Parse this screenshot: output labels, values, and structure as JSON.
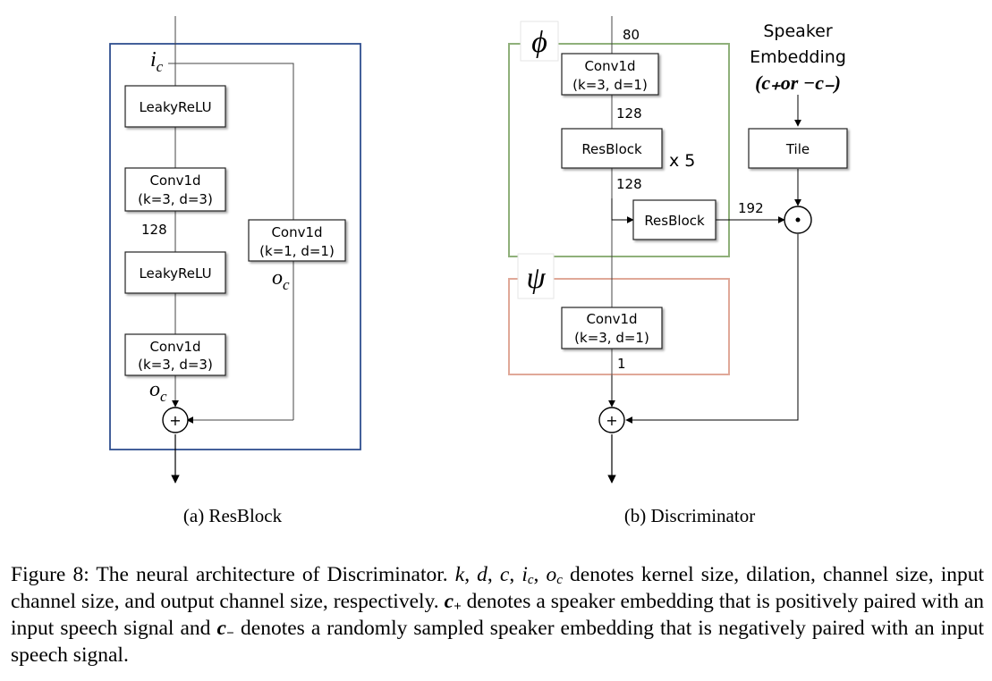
{
  "resblock": {
    "input_label": "i",
    "input_sub": "c",
    "output_label": "o",
    "output_sub": "c",
    "skip_label": "o",
    "skip_sub": "c",
    "leaky1": "LeakyReLU",
    "conv1_line1": "Conv1d",
    "conv1_line2": "(k=3, d=3)",
    "ch_128": "128",
    "leaky2": "LeakyReLU",
    "conv2_line1": "Conv1d",
    "conv2_line2": "(k=3, d=3)",
    "skip_line1": "Conv1d",
    "skip_line2": "(k=1, d=1)",
    "plus": "+",
    "subcaption": "(a) ResBlock",
    "border_color": "#2f4f8f"
  },
  "discriminator": {
    "ch_80": "80",
    "phi": "ϕ",
    "psi": "ψ",
    "conv_a_line1": "Conv1d",
    "conv_a_line2": "(k=3, d=1)",
    "ch_128a": "128",
    "resblock": "ResBlock",
    "times5": "x 5",
    "ch_128b": "128",
    "resblock_b": "ResBlock",
    "ch_192": "192",
    "spk_line1": "Speaker",
    "spk_line2": "Embedding",
    "spk_line3": "(c₊or −c₋)",
    "tile": "Tile",
    "dot": "⊙",
    "conv_b_line1": "Conv1d",
    "conv_b_line2": "(k=3, d=1)",
    "ch_1": "1",
    "plus": "+",
    "subcaption": "(b) Discriminator",
    "phi_color": "#8fb07a",
    "psi_color": "#e0a898"
  },
  "caption": {
    "p1": "Figure 8: The neural architecture of Discriminator. ",
    "k": "k",
    "s1": ", ",
    "d": "d",
    "s2": ", ",
    "c": "c",
    "s3": ", ",
    "ic": "i",
    "ic_sub": "c",
    "s4": ", ",
    "oc": "o",
    "oc_sub": "c",
    "p2": " denotes kernel size, dilation, channel size, input channel size, and output channel size, respectively. ",
    "cplus": "c",
    "cplus_sub": "+",
    "p3": " denotes a speaker embedding that is positively paired with an input speech signal and ",
    "cminus": "c",
    "cminus_sub": "−",
    "p4": " denotes a randomly sampled speaker embedding that is negatively paired with an input speech signal."
  }
}
